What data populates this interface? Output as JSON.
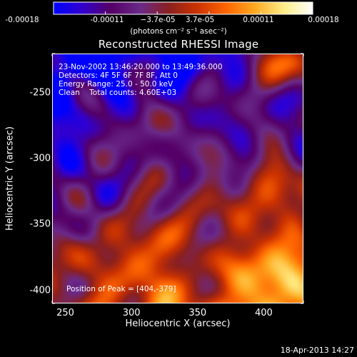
{
  "colorbar": {
    "tick_labels": [
      "-0.00018",
      "-0.00011",
      "−3.7e-05",
      "3.7e-05",
      "0.00011",
      "0.00018"
    ],
    "units": "(photons cm⁻² s⁻¹ asec⁻²)",
    "colors": [
      "#0000ff",
      "#3300cc",
      "#550066",
      "#6a2a8a",
      "#8a2020",
      "#cc3300",
      "#ff6600",
      "#ffaa22",
      "#ffee88",
      "#ffffff"
    ]
  },
  "plot": {
    "title": "Reconstructed RHESSI Image",
    "info": {
      "time": "23-Nov-2002 13:46:20.000 to 13:49:36.000",
      "detectors": "Detectors: 4F 5F 6F 7F 8F, Att 0",
      "energy": "Energy Range: 25.0 - 50.0 keV",
      "clean": "Clean    Total counts: 4.60E+03"
    },
    "peak": "Position of Peak = [404,-379]",
    "xlabel": "Heliocentric X (arcsec)",
    "ylabel": "Heliocentric Y (arcsec)",
    "xticks": [
      "250",
      "300",
      "350",
      "400"
    ],
    "yticks": [
      "-250",
      "-300",
      "-350",
      "-400"
    ]
  },
  "chart_data": {
    "type": "heatmap",
    "title": "Reconstructed RHESSI Image",
    "xlabel": "Heliocentric X (arcsec)",
    "ylabel": "Heliocentric Y (arcsec)",
    "xlim": [
      240,
      430
    ],
    "ylim": [
      -410,
      -220
    ],
    "xticks": [
      250,
      300,
      350,
      400
    ],
    "yticks": [
      -250,
      -300,
      -350,
      -400
    ],
    "colorbar_range": [
      -0.00018,
      0.00018
    ],
    "peak_position": [
      404,
      -379
    ]
  },
  "footer": {
    "timestamp": "18-Apr-2013 14:27"
  }
}
